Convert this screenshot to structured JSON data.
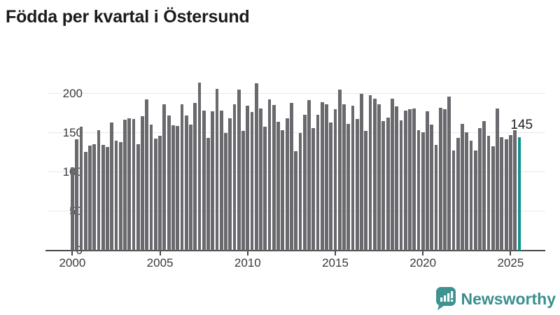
{
  "title": "Födda per kvartal i Östersund",
  "annotation": {
    "label": "145"
  },
  "branding": {
    "name": "Newsworthy"
  },
  "colors": {
    "bar": "#69696e",
    "highlight": "#0d948e",
    "grid": "#e8e8e8",
    "axis": "#474747",
    "tick_text": "#3a3a3a",
    "title_text": "#1b1b1b",
    "logo_teal": "#3e9290"
  },
  "chart_data": {
    "type": "bar",
    "title": "Födda per kvartal i Östersund",
    "xlabel": "",
    "ylabel": "",
    "x_unit": "quarter",
    "start_year": 2000,
    "start_quarter": "Q1",
    "end_year": 2025,
    "end_quarter": "Q3",
    "x_tick_labels": [
      "2000",
      "2005",
      "2010",
      "2015",
      "2020",
      "2025"
    ],
    "y_ticks": [
      0,
      50,
      100,
      150,
      200
    ],
    "ylim": [
      0,
      220
    ],
    "grid": "horizontal",
    "legend": "none",
    "highlight_last_bar": true,
    "last_bar_value_label": "145",
    "values": [
      106,
      142,
      158,
      126,
      134,
      136,
      154,
      135,
      132,
      163,
      140,
      138,
      167,
      169,
      168,
      136,
      171,
      193,
      161,
      143,
      146,
      187,
      172,
      160,
      159,
      187,
      172,
      161,
      188,
      214,
      179,
      144,
      178,
      206,
      179,
      150,
      169,
      187,
      205,
      153,
      185,
      177,
      213,
      181,
      158,
      193,
      186,
      164,
      154,
      169,
      188,
      127,
      150,
      173,
      192,
      156,
      173,
      189,
      187,
      163,
      180,
      205,
      187,
      162,
      185,
      168,
      200,
      153,
      198,
      194,
      187,
      165,
      170,
      194,
      184,
      166,
      179,
      180,
      181,
      154,
      151,
      178,
      161,
      135,
      182,
      180,
      196,
      128,
      144,
      162,
      151,
      140,
      128,
      156,
      165,
      146,
      133,
      181,
      145,
      142,
      147,
      154,
      145
    ]
  }
}
